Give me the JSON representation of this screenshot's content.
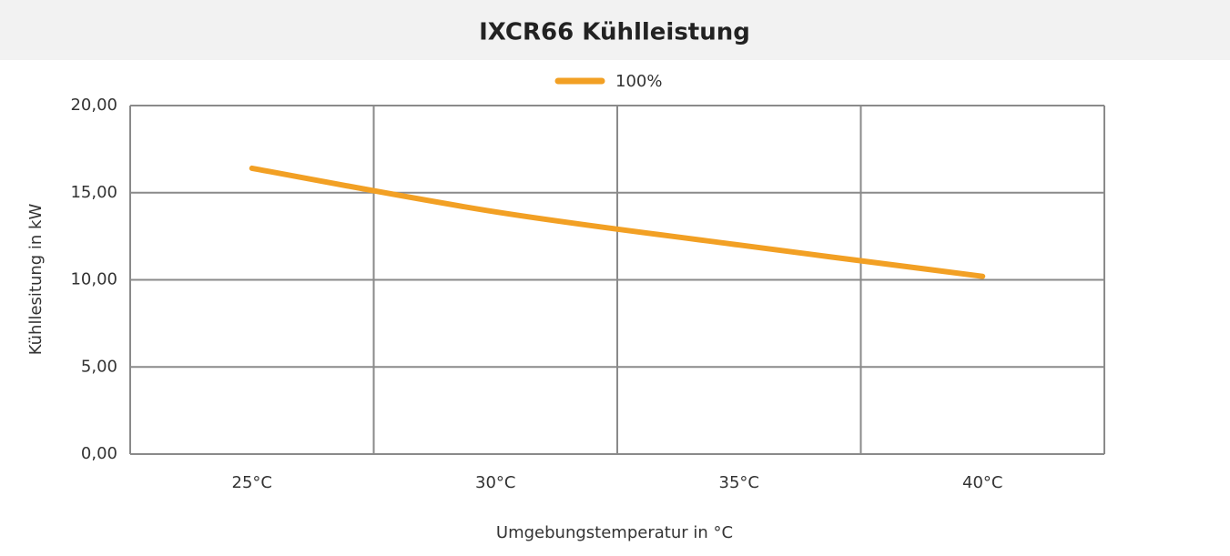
{
  "chart_data": {
    "type": "line",
    "title": "IXCR66 Kühlleistung",
    "x_label": "Umgebungstemperatur in °C",
    "y_label": "Kühllesitung in kW",
    "categories": [
      "25°C",
      "30°C",
      "35°C",
      "40°C"
    ],
    "series": [
      {
        "name": "100%",
        "color": "#f2a024",
        "values": [
          16.4,
          13.9,
          12.0,
          10.2
        ]
      }
    ],
    "ylim": [
      0,
      20
    ],
    "yticks": [
      {
        "value": 0,
        "label": "0,00"
      },
      {
        "value": 5,
        "label": "5,00"
      },
      {
        "value": 10,
        "label": "10,00"
      },
      {
        "value": 15,
        "label": "15,00"
      },
      {
        "value": 20,
        "label": "20,00"
      }
    ],
    "grid": true,
    "legend": "top"
  }
}
